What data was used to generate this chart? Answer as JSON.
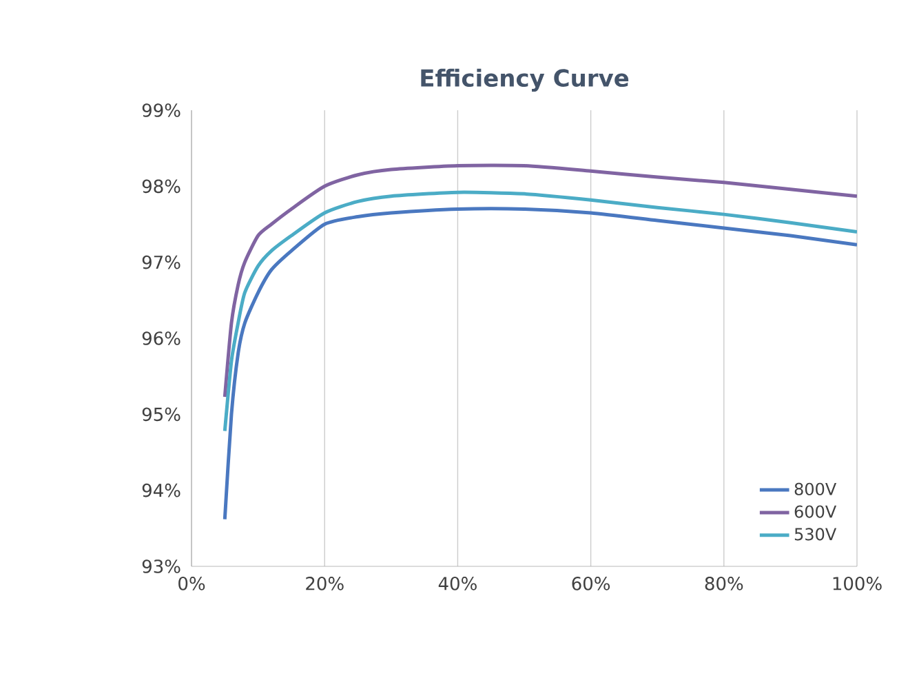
{
  "chart_data": {
    "type": "line",
    "title": "Efficiency Curve",
    "x": [
      5,
      6,
      7,
      8,
      10,
      12,
      15,
      20,
      25,
      30,
      40,
      50,
      60,
      70,
      80,
      90,
      100
    ],
    "series": [
      {
        "name": "800V",
        "color": "#4a78c0",
        "values": [
          93.62,
          95.0,
          95.8,
          96.2,
          96.6,
          96.9,
          97.15,
          97.5,
          97.6,
          97.65,
          97.7,
          97.7,
          97.65,
          97.55,
          97.45,
          97.35,
          97.23
        ]
      },
      {
        "name": "600V",
        "color": "#8064a2",
        "values": [
          95.23,
          96.2,
          96.7,
          97.0,
          97.35,
          97.5,
          97.7,
          98.0,
          98.15,
          98.22,
          98.27,
          98.27,
          98.2,
          98.12,
          98.05,
          97.96,
          97.87
        ]
      },
      {
        "name": "530V",
        "color": "#4bacc6",
        "values": [
          94.78,
          95.7,
          96.2,
          96.6,
          96.95,
          97.15,
          97.35,
          97.65,
          97.8,
          97.87,
          97.92,
          97.9,
          97.82,
          97.72,
          97.63,
          97.52,
          97.4
        ]
      }
    ],
    "xlim": [
      0,
      100
    ],
    "ylim": [
      93,
      99
    ],
    "xticks": [
      {
        "value": 0,
        "label": "0%"
      },
      {
        "value": 20,
        "label": "20%"
      },
      {
        "value": 40,
        "label": "40%"
      },
      {
        "value": 60,
        "label": "60%"
      },
      {
        "value": 80,
        "label": "80%"
      },
      {
        "value": 100,
        "label": "100%"
      }
    ],
    "yticks": [
      {
        "value": 93,
        "label": "93%"
      },
      {
        "value": 94,
        "label": "94%"
      },
      {
        "value": 95,
        "label": "95%"
      },
      {
        "value": 96,
        "label": "96%"
      },
      {
        "value": 97,
        "label": "97%"
      },
      {
        "value": 98,
        "label": "98%"
      },
      {
        "value": 99,
        "label": "99%"
      }
    ],
    "grid": "x",
    "legend": "bottom right",
    "marker": "none",
    "line_style": "solid"
  }
}
